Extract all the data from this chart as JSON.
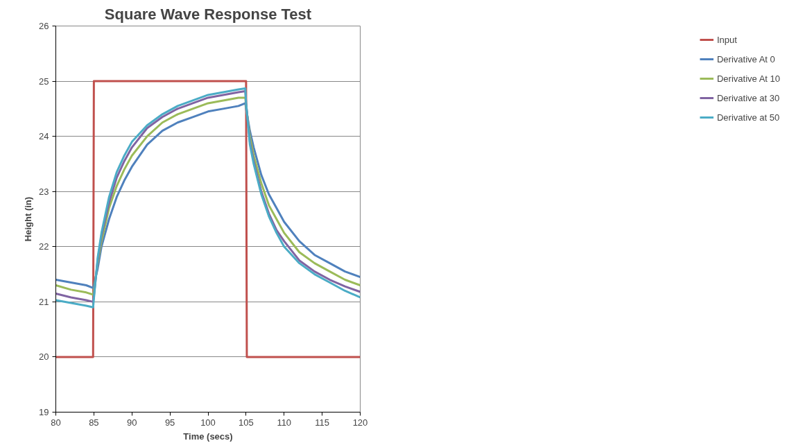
{
  "chart_data": {
    "type": "line",
    "title": "Square Wave Response Test",
    "xlabel": "Time (secs)",
    "ylabel": "Height (in)",
    "xlim": [
      80,
      120
    ],
    "ylim": [
      19,
      26
    ],
    "xticks": [
      80,
      85,
      90,
      95,
      100,
      105,
      110,
      115,
      120
    ],
    "yticks": [
      19,
      20,
      21,
      22,
      23,
      24,
      25,
      26
    ],
    "grid": "y",
    "legend": "right",
    "marker": "none",
    "line_style": "solid",
    "x": [
      80,
      82,
      84,
      84.9,
      85,
      85.5,
      86,
      87,
      88,
      89,
      90,
      92,
      94,
      96,
      98,
      100,
      102,
      104,
      104.9,
      105,
      105.5,
      106,
      107,
      108,
      109,
      110,
      112,
      114,
      116,
      118,
      120
    ],
    "series": [
      {
        "name": "Input",
        "color": "#c0504d",
        "x": [
          80,
          84.9,
          85,
          105,
          105.1,
          120
        ],
        "values": [
          20,
          20,
          25,
          25,
          20,
          20
        ]
      },
      {
        "name": "Derivative At 0",
        "color": "#4f81bd",
        "values": [
          21.4,
          21.35,
          21.3,
          21.25,
          21.3,
          21.6,
          22.0,
          22.5,
          22.9,
          23.2,
          23.45,
          23.85,
          24.1,
          24.25,
          24.35,
          24.45,
          24.5,
          24.55,
          24.6,
          24.5,
          24.1,
          23.8,
          23.3,
          22.95,
          22.7,
          22.45,
          22.1,
          21.85,
          21.7,
          21.55,
          21.45
        ]
      },
      {
        "name": "Derivative At 10",
        "color": "#9bbb59",
        "values": [
          21.3,
          21.22,
          21.17,
          21.13,
          21.2,
          21.7,
          22.1,
          22.7,
          23.1,
          23.4,
          23.65,
          24.0,
          24.25,
          24.4,
          24.5,
          24.6,
          24.65,
          24.7,
          24.7,
          24.55,
          24.0,
          23.65,
          23.15,
          22.75,
          22.5,
          22.25,
          21.9,
          21.7,
          21.55,
          21.4,
          21.3
        ]
      },
      {
        "name": "Derivative at 30",
        "color": "#8064a2",
        "values": [
          21.15,
          21.08,
          21.03,
          21.0,
          21.1,
          21.75,
          22.2,
          22.8,
          23.25,
          23.55,
          23.8,
          24.15,
          24.35,
          24.5,
          24.6,
          24.7,
          24.75,
          24.8,
          24.82,
          24.6,
          23.9,
          23.55,
          23.0,
          22.6,
          22.3,
          22.1,
          21.75,
          21.55,
          21.4,
          21.28,
          21.18
        ]
      },
      {
        "name": "Derivative at 50",
        "color": "#4bacc6",
        "values": [
          21.03,
          20.98,
          20.93,
          20.9,
          21.05,
          21.8,
          22.25,
          22.9,
          23.35,
          23.65,
          23.9,
          24.2,
          24.4,
          24.55,
          24.65,
          24.75,
          24.8,
          24.85,
          24.87,
          24.6,
          23.85,
          23.5,
          22.95,
          22.55,
          22.25,
          22.0,
          21.7,
          21.5,
          21.35,
          21.2,
          21.08
        ]
      }
    ]
  }
}
